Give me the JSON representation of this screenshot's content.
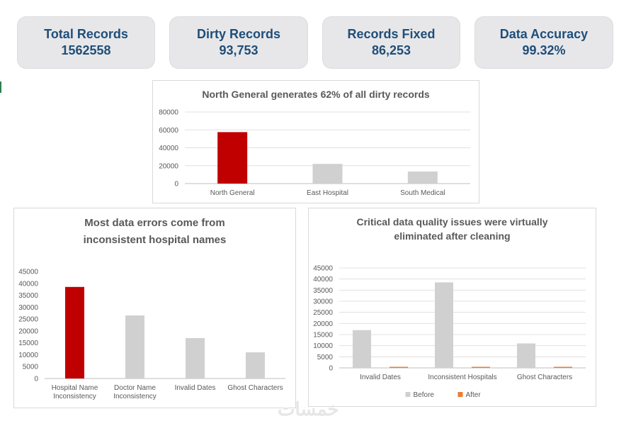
{
  "kpis": [
    {
      "label": "Total Records",
      "value": "1562558"
    },
    {
      "label": "Dirty Records",
      "value": "93,753"
    },
    {
      "label": "Records Fixed",
      "value": "86,253"
    },
    {
      "label": "Data Accuracy",
      "value": "99.32%"
    }
  ],
  "watermark": "خمسات",
  "colors": {
    "highlight": "#c00000",
    "neutral": "#d0d0d0",
    "after": "#ed7d31",
    "kpi_text": "#1f4e79"
  },
  "chart_data": [
    {
      "type": "bar",
      "title": "North General generates 62% of all dirty records",
      "categories": [
        "North General",
        "East Hospital",
        "South Medical"
      ],
      "values": [
        57500,
        22000,
        13500
      ],
      "highlight_index": 0,
      "ylim": [
        0,
        80000
      ],
      "yticks": [
        "0",
        "20000",
        "40000",
        "60000",
        "80000"
      ],
      "grid": true
    },
    {
      "type": "bar",
      "title": [
        "Most data errors come from",
        "inconsistent hospital names"
      ],
      "categories": [
        [
          "Hospital Name",
          "Inconsistency"
        ],
        [
          "Doctor Name",
          "Inconsistency"
        ],
        [
          "Invalid Dates"
        ],
        [
          "Ghost Characters"
        ]
      ],
      "values": [
        38500,
        26500,
        17000,
        11000
      ],
      "highlight_index": 0,
      "ylim": [
        0,
        45000
      ],
      "yticks": [
        "0",
        "5000",
        "10000",
        "15000",
        "20000",
        "25000",
        "30000",
        "35000",
        "40000",
        "45000"
      ],
      "grid": false
    },
    {
      "type": "bar",
      "title": [
        "Critical data quality issues were virtually",
        "eliminated after cleaning"
      ],
      "categories": [
        "Invalid Dates",
        "Inconsistent Hospitals",
        "Ghost Characters"
      ],
      "series": [
        {
          "name": "Before",
          "values": [
            17000,
            38500,
            11000
          ]
        },
        {
          "name": "After",
          "values": [
            300,
            300,
            300
          ]
        }
      ],
      "ylim": [
        0,
        45000
      ],
      "yticks": [
        "0",
        "5000",
        "10000",
        "15000",
        "20000",
        "25000",
        "30000",
        "35000",
        "40000",
        "45000"
      ],
      "grid": true,
      "legend": "bottom"
    }
  ]
}
